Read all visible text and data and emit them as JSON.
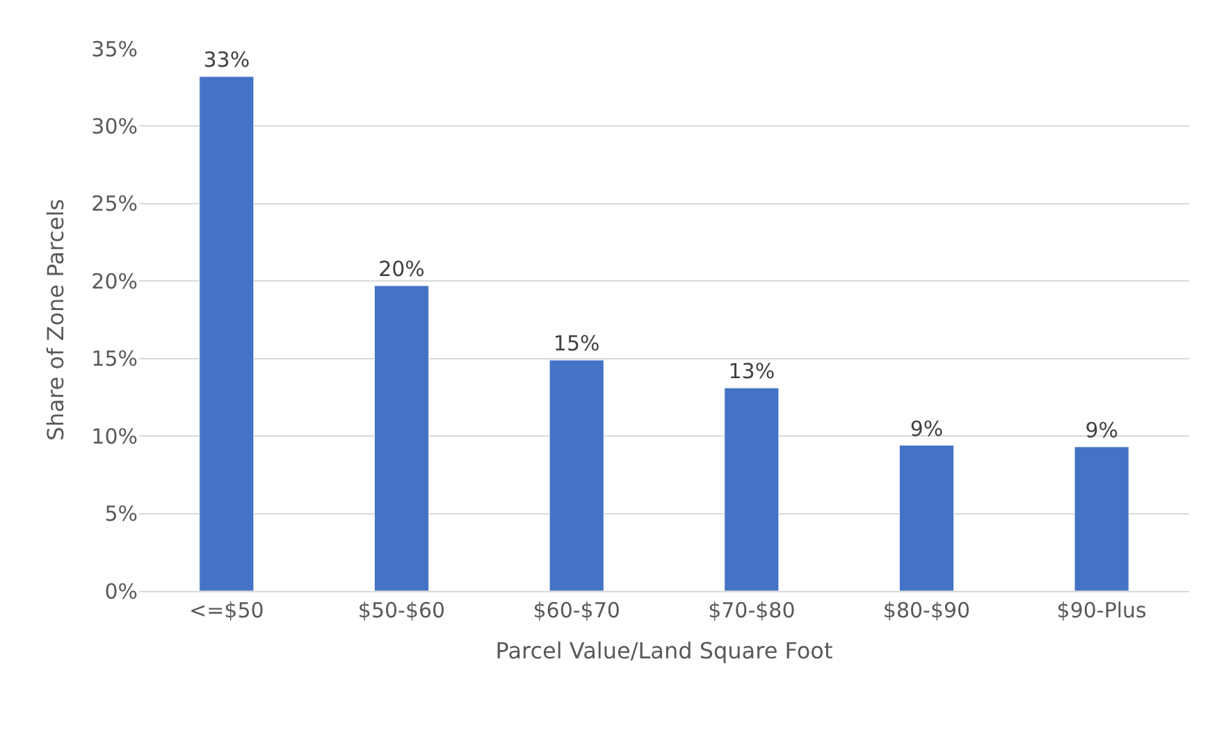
{
  "chart_data": {
    "type": "bar",
    "xlabel": "Parcel Value/Land Square Foot",
    "ylabel": "Share of Zone Parcels",
    "categories": [
      "<=$50",
      "$50-$60",
      "$60-$70",
      "$70-$80",
      "$80-$90",
      "$90-Plus"
    ],
    "values": [
      33.2,
      19.7,
      14.9,
      13.1,
      9.4,
      9.3
    ],
    "value_labels": [
      "33%",
      "20%",
      "15%",
      "13%",
      "9%",
      "9%"
    ],
    "color": "#4472c4",
    "ylim": [
      0,
      35
    ],
    "yticks": [
      {
        "value": 0,
        "label": "0%"
      },
      {
        "value": 5,
        "label": "5%"
      },
      {
        "value": 10,
        "label": "10%"
      },
      {
        "value": 15,
        "label": "15%"
      },
      {
        "value": 20,
        "label": "20%"
      },
      {
        "value": 25,
        "label": "25%"
      },
      {
        "value": 30,
        "label": "30%"
      },
      {
        "value": 35,
        "label": "35%"
      }
    ],
    "grid": "y",
    "legend": false
  }
}
